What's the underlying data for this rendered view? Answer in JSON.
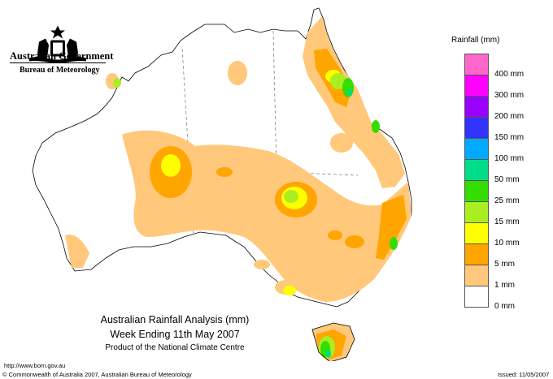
{
  "header": {
    "government": "Australian Government",
    "bureau": "Bureau of Meteorology"
  },
  "legend": {
    "title": "Rainfall (mm)",
    "entries": [
      {
        "label": "400 mm",
        "color": "#ff66cc"
      },
      {
        "label": "300 mm",
        "color": "#ff00ff"
      },
      {
        "label": "200 mm",
        "color": "#9900ff"
      },
      {
        "label": "150 mm",
        "color": "#3333ff"
      },
      {
        "label": "100 mm",
        "color": "#00aaff"
      },
      {
        "label": "50 mm",
        "color": "#00dd88"
      },
      {
        "label": "25 mm",
        "color": "#33dd00"
      },
      {
        "label": "15 mm",
        "color": "#aaee22"
      },
      {
        "label": "10 mm",
        "color": "#ffff00"
      },
      {
        "label": "5 mm",
        "color": "#ffa500"
      },
      {
        "label": "1 mm",
        "color": "#ffc87a"
      },
      {
        "label": "0 mm",
        "color": "#ffffff"
      }
    ]
  },
  "title": {
    "main": "Australian Rainfall Analysis (mm)",
    "week": "Week Ending 11th May 2007",
    "product": "Product of the National Climate Centre"
  },
  "footer": {
    "url": "http://www.bom.gov.au",
    "copyright": "© Commonwealth of Australia 2007, Australian Bureau of Meteorology",
    "issued": "Issued: 11/05/2007"
  }
}
